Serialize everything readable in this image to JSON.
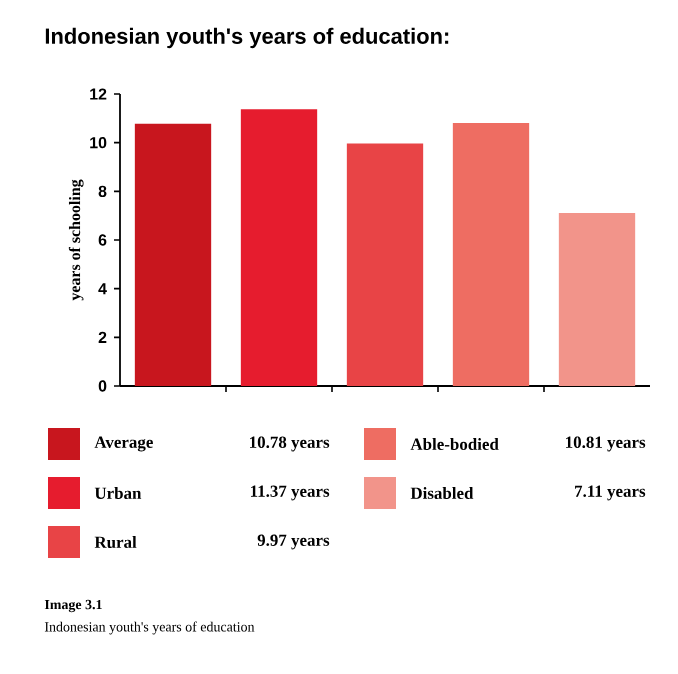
{
  "chart_data": {
    "type": "bar",
    "title": "Indonesian youth's years of education:",
    "ylabel": "years of schooling",
    "categories": [
      null,
      null,
      null,
      null,
      null
    ],
    "series": [
      {
        "name": "Average",
        "color": "#c8161e",
        "values": [
          10.78,
          null,
          null,
          null,
          null
        ]
      },
      {
        "name": "Urban",
        "color": "#e61c2e",
        "values": [
          null,
          11.37,
          null,
          null,
          null
        ]
      },
      {
        "name": "Rural",
        "color": "#e84446",
        "values": [
          null,
          null,
          9.97,
          null,
          null
        ]
      },
      {
        "name": "Able-bodied",
        "color": "#ee6d62",
        "values": [
          null,
          null,
          null,
          10.81,
          null
        ]
      },
      {
        "name": "Disabled",
        "color": "#f2948a",
        "values": [
          null,
          null,
          null,
          null,
          7.11
        ]
      }
    ],
    "ylim": [
      0,
      12
    ],
    "yticks": [
      0,
      2,
      4,
      6,
      8,
      10,
      12
    ],
    "legend": "bottom",
    "annotations": [
      "10.78 years",
      "11.37 years",
      "9.97 years",
      "10.81 years",
      "7.11 years",
      "**Image 3.1**",
      "Indonesian youth's years of education"
    ]
  }
}
